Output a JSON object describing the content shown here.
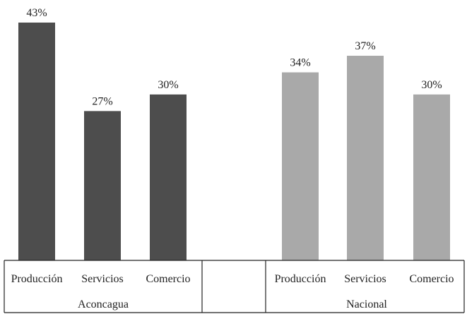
{
  "chart_data": {
    "type": "bar",
    "ylim": [
      0,
      43
    ],
    "groups": [
      {
        "name": "Aconcagua",
        "color": "#4d4d4d",
        "categories": [
          "Producción",
          "Servicios",
          "Comercio"
        ],
        "values": [
          43,
          27,
          30
        ],
        "value_labels": [
          "43%",
          "27%",
          "30%"
        ]
      },
      {
        "name": "Nacional",
        "color": "#a9a9a9",
        "categories": [
          "Producción",
          "Servicios",
          "Comercio"
        ],
        "values": [
          34,
          37,
          30
        ],
        "value_labels": [
          "34%",
          "37%",
          "30%"
        ]
      }
    ]
  }
}
